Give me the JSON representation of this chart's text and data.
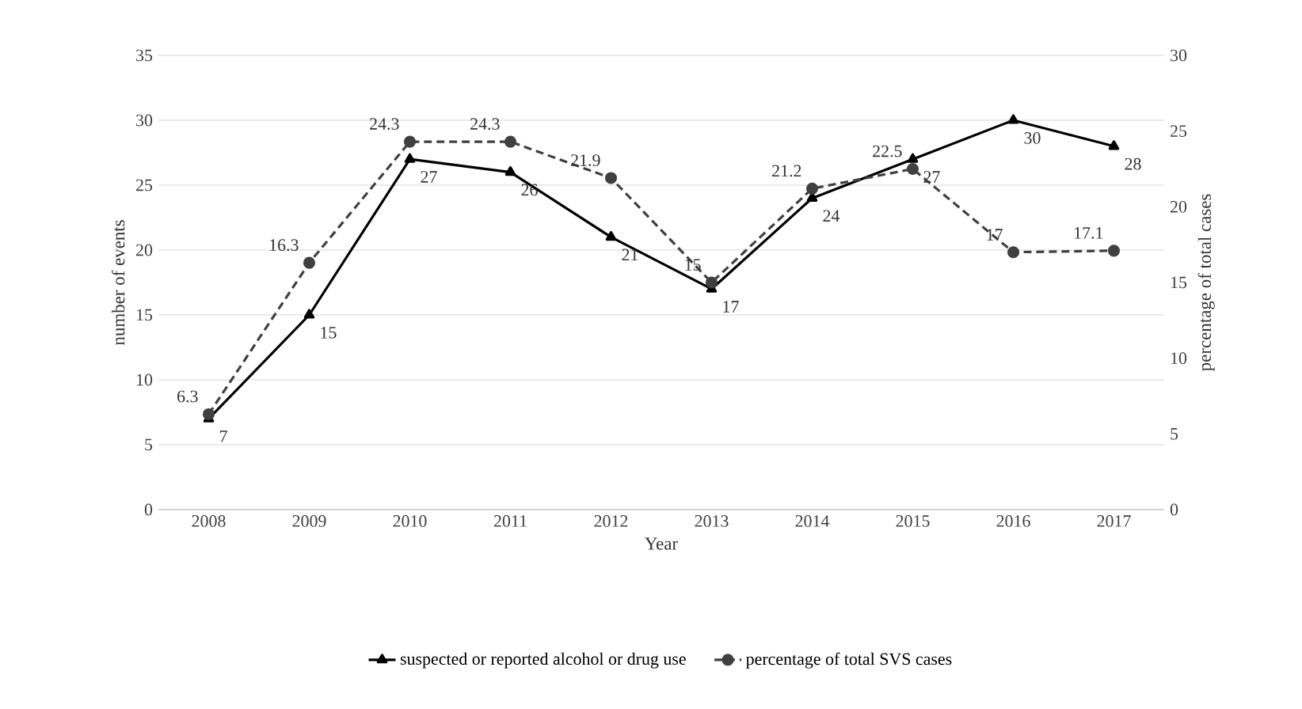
{
  "chart_data": {
    "type": "line",
    "xlabel": "Year",
    "ylabel": "number of events",
    "y2label": "percentage of total cases",
    "categories": [
      "2008",
      "2009",
      "2010",
      "2011",
      "2012",
      "2013",
      "2014",
      "2015",
      "2016",
      "2017"
    ],
    "series": [
      {
        "name": "suspected or reported alcohol or drug use",
        "color": "#000000",
        "marker": "triangle",
        "line_style": "solid",
        "values": [
          7,
          15,
          27,
          26,
          21,
          17,
          24,
          27,
          30,
          28
        ]
      },
      {
        "name": "percentage of total SVS cases",
        "color": "#404040",
        "marker": "circle",
        "line_style": "dashed",
        "axis": "y2",
        "values": [
          6.3,
          16.3,
          24.3,
          24.3,
          21.9,
          15,
          21.2,
          22.5,
          17,
          17.1
        ]
      }
    ],
    "ylim": [
      0,
      35
    ],
    "yticks": [
      0,
      5,
      10,
      15,
      20,
      25,
      30,
      35
    ],
    "y2lim": [
      0,
      30
    ],
    "y2ticks": [
      0,
      5,
      10,
      15,
      20,
      25,
      30
    ],
    "grid": "y",
    "legend": "bottom",
    "data_labels": true
  }
}
